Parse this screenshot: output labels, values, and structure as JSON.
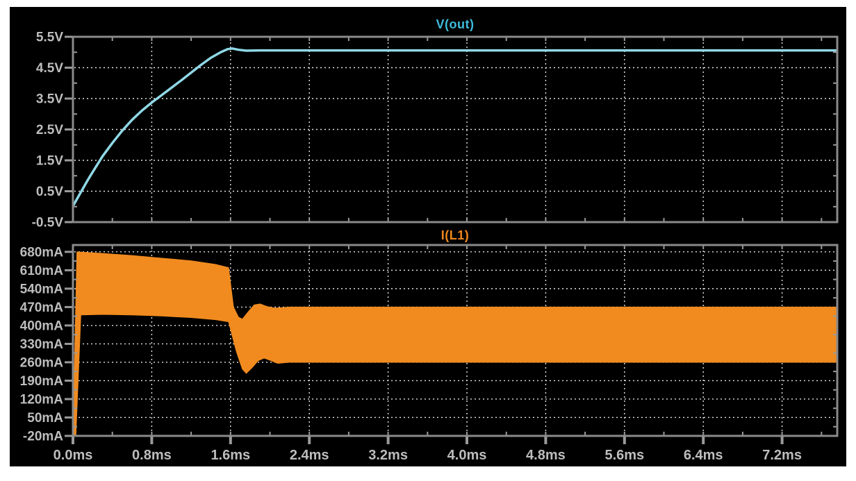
{
  "window": {
    "background": "#ffffff",
    "canvas_background": "#000000",
    "panel_border_color": "#8a8a8a",
    "grid_color": "#e4e4e4",
    "axis_label_color": "#bdbdbd",
    "tick_color": "#9a9a9a"
  },
  "chart_data": [
    {
      "type": "line",
      "title": "V(out)",
      "title_color": "#3fbcdc",
      "trace_color": "#8fd8e5",
      "ylabel": "",
      "xlabel": "",
      "ylim": [
        -0.5,
        5.5
      ],
      "yticks": [
        5.5,
        4.5,
        3.5,
        2.5,
        1.5,
        0.5,
        -0.5
      ],
      "ytick_labels": [
        "5.5V",
        "4.5V",
        "3.5V",
        "2.5V",
        "1.5V",
        "0.5V",
        "-0.5V"
      ],
      "xlim": [
        0,
        7.76
      ],
      "xticks": [
        0,
        0.8,
        1.6,
        2.4,
        3.2,
        4.0,
        4.8,
        5.6,
        6.4,
        7.2
      ],
      "xtick_labels": [
        "0.0ms",
        "0.8ms",
        "1.6ms",
        "2.4ms",
        "3.2ms",
        "4.0ms",
        "4.8ms",
        "5.6ms",
        "6.4ms",
        "7.2ms"
      ],
      "show_x_labels": false,
      "grid": true,
      "points": [
        [
          0,
          0.02
        ],
        [
          0.05,
          0.3
        ],
        [
          0.1,
          0.58
        ],
        [
          0.15,
          0.86
        ],
        [
          0.2,
          1.12
        ],
        [
          0.3,
          1.63
        ],
        [
          0.4,
          2.06
        ],
        [
          0.5,
          2.46
        ],
        [
          0.6,
          2.81
        ],
        [
          0.7,
          3.11
        ],
        [
          0.8,
          3.37
        ],
        [
          0.9,
          3.61
        ],
        [
          1.0,
          3.85
        ],
        [
          1.1,
          4.09
        ],
        [
          1.2,
          4.34
        ],
        [
          1.3,
          4.59
        ],
        [
          1.4,
          4.82
        ],
        [
          1.5,
          5.0
        ],
        [
          1.57,
          5.1
        ],
        [
          1.62,
          5.12
        ],
        [
          1.68,
          5.08
        ],
        [
          1.76,
          5.05
        ],
        [
          1.9,
          5.06
        ],
        [
          7.76,
          5.06
        ]
      ]
    },
    {
      "type": "area-band",
      "title": "I(L1)",
      "title_color": "#f0871c",
      "trace_color": "#f18b1f",
      "ylabel": "",
      "xlabel": "",
      "ylim": [
        -20,
        706
      ],
      "yticks": [
        680,
        610,
        540,
        470,
        400,
        330,
        260,
        190,
        120,
        50,
        -20
      ],
      "ytick_labels": [
        "680mA",
        "610mA",
        "540mA",
        "470mA",
        "400mA",
        "330mA",
        "260mA",
        "190mA",
        "120mA",
        "50mA",
        "-20mA"
      ],
      "xlim": [
        0,
        7.76
      ],
      "xticks": [
        0,
        0.8,
        1.6,
        2.4,
        3.2,
        4.0,
        4.8,
        5.6,
        6.4,
        7.2
      ],
      "xtick_labels": [
        "0.0ms",
        "0.8ms",
        "1.6ms",
        "2.4ms",
        "3.2ms",
        "4.0ms",
        "4.8ms",
        "5.6ms",
        "6.4ms",
        "7.2ms"
      ],
      "show_x_labels": true,
      "grid": true,
      "upper": [
        [
          0,
          -16
        ],
        [
          0.04,
          680
        ],
        [
          0.3,
          674
        ],
        [
          0.6,
          666
        ],
        [
          0.9,
          656
        ],
        [
          1.2,
          646
        ],
        [
          1.45,
          632
        ],
        [
          1.58,
          620
        ],
        [
          1.63,
          470
        ],
        [
          1.68,
          432
        ],
        [
          1.72,
          424
        ],
        [
          1.78,
          452
        ],
        [
          1.84,
          478
        ],
        [
          1.9,
          482
        ],
        [
          1.97,
          472
        ],
        [
          2.05,
          466
        ],
        [
          2.2,
          470
        ],
        [
          7.76,
          470
        ]
      ],
      "lower": [
        [
          0,
          -16
        ],
        [
          0.03,
          -16
        ],
        [
          0.08,
          440
        ],
        [
          0.3,
          442
        ],
        [
          0.6,
          440
        ],
        [
          0.9,
          436
        ],
        [
          1.2,
          430
        ],
        [
          1.45,
          422
        ],
        [
          1.58,
          414
        ],
        [
          1.66,
          300
        ],
        [
          1.72,
          234
        ],
        [
          1.76,
          218
        ],
        [
          1.82,
          240
        ],
        [
          1.88,
          266
        ],
        [
          1.94,
          276
        ],
        [
          2.0,
          268
        ],
        [
          2.08,
          256
        ],
        [
          2.2,
          260
        ],
        [
          7.76,
          260
        ]
      ]
    }
  ]
}
